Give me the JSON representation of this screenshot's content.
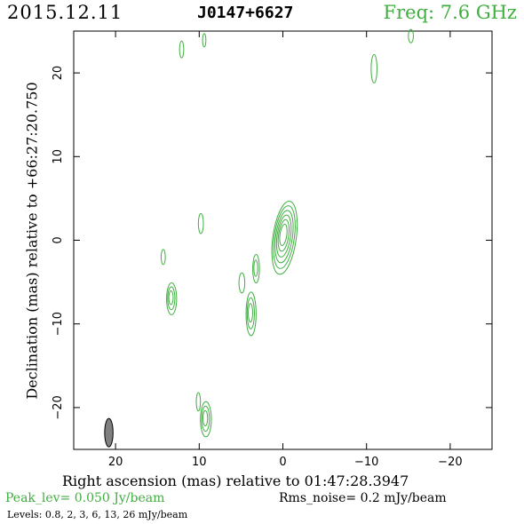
{
  "header": {
    "date": "2015.12.11",
    "source": "J0147+6627",
    "frequency": "Freq: 7.6 GHz"
  },
  "footer": {
    "peak": "Peak_lev=  0.050 Jy/beam",
    "rms": "Rms_noise=   0.2 mJy/beam",
    "levels": "Levels: 0.8,    2,    3,    6,   13,   26 mJy/beam"
  },
  "colors": {
    "contour": "#3fae3f",
    "beam_fill": "#808080",
    "text_green": "#3fae3f"
  },
  "chart_data": {
    "type": "contour",
    "title": "J0147+6627",
    "xlabel": "Right ascension (mas) relative to 01:47:28.3947",
    "ylabel": "Declination (mas) relative to +66:27:20.750",
    "xlim": [
      25,
      -25
    ],
    "ylim": [
      -25,
      25
    ],
    "xticks": [
      20,
      10,
      0,
      -10,
      -20
    ],
    "xtick_labels": [
      "20",
      "10",
      "0",
      "−10",
      "−20"
    ],
    "yticks": [
      20,
      10,
      0,
      -10,
      -20
    ],
    "ytick_labels": [
      "20",
      "10",
      "0",
      "−10",
      "−20"
    ],
    "levels_mJy": [
      0.8,
      2,
      3,
      6,
      13,
      26
    ],
    "beam": {
      "x": 20.8,
      "y": -23,
      "major": 3.4,
      "minor": 1.0,
      "pa": 0
    },
    "components": [
      {
        "x": -0.2,
        "y": 0.3,
        "major": 4.4,
        "minor": 1.4,
        "pa": 8,
        "levels": 6
      },
      {
        "x": 13.3,
        "y": -7.0,
        "major": 1.9,
        "minor": 0.6,
        "pa": 0,
        "levels": 3
      },
      {
        "x": 3.8,
        "y": -8.8,
        "major": 2.6,
        "minor": 0.6,
        "pa": 0,
        "levels": 3
      },
      {
        "x": 9.2,
        "y": -21.4,
        "major": 2.1,
        "minor": 0.65,
        "pa": 0,
        "levels": 3
      },
      {
        "x": 3.2,
        "y": -3.4,
        "major": 1.7,
        "minor": 0.4,
        "pa": 0,
        "levels": 2
      },
      {
        "x": 4.9,
        "y": -5.1,
        "major": 1.2,
        "minor": 0.35,
        "pa": 0,
        "levels": 1
      },
      {
        "x": 9.8,
        "y": 2.0,
        "major": 1.2,
        "minor": 0.3,
        "pa": 0,
        "levels": 1
      },
      {
        "x": 14.3,
        "y": -2.0,
        "major": 0.9,
        "minor": 0.25,
        "pa": 0,
        "levels": 1
      },
      {
        "x": 10.1,
        "y": -19.3,
        "major": 1.1,
        "minor": 0.25,
        "pa": 0,
        "levels": 1
      },
      {
        "x": 12.1,
        "y": 22.8,
        "major": 1.0,
        "minor": 0.25,
        "pa": 0,
        "levels": 1
      },
      {
        "x": 9.4,
        "y": 23.9,
        "major": 0.8,
        "minor": 0.2,
        "pa": 0,
        "levels": 1
      },
      {
        "x": -10.9,
        "y": 20.5,
        "major": 1.7,
        "minor": 0.35,
        "pa": 0,
        "levels": 1
      },
      {
        "x": -15.3,
        "y": 24.4,
        "major": 0.8,
        "minor": 0.3,
        "pa": 0,
        "levels": 1
      }
    ]
  }
}
